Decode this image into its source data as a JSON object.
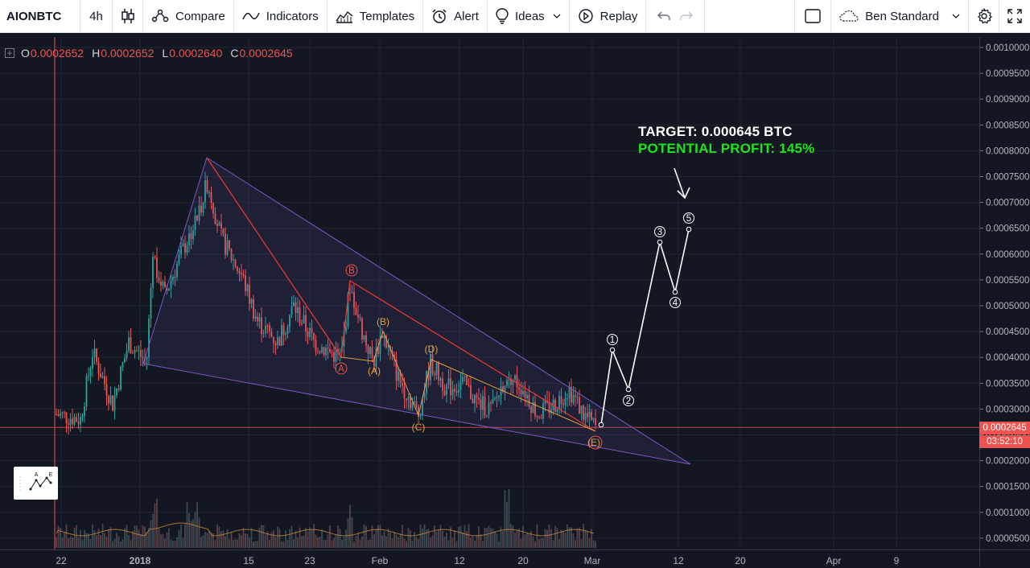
{
  "toolbar": {
    "symbol": "AIONBTC",
    "interval": "4h",
    "compare_label": "Compare",
    "indicators_label": "Indicators",
    "templates_label": "Templates",
    "alert_label": "Alert",
    "ideas_label": "Ideas",
    "replay_label": "Replay",
    "layout_name": "Ben Standard"
  },
  "legend": {
    "o_label": "O",
    "o_value": "0.0002652",
    "h_label": "H",
    "h_value": "0.0002652",
    "l_label": "L",
    "l_value": "0.0002640",
    "c_label": "C",
    "c_value": "0.0002645"
  },
  "annotations": {
    "target": "TARGET: 0.000645 BTC",
    "profit": "POTENTIAL PROFIT: 145%"
  },
  "wave_labels": {
    "red": [
      "A",
      "B",
      "E"
    ],
    "orange": [
      "(A)",
      "(B)",
      "(C)",
      "(D)",
      "(E)"
    ],
    "projection": [
      "1",
      "2",
      "3",
      "4",
      "5"
    ]
  },
  "price_axis": {
    "ticks": [
      "0.0010000",
      "0.0009500",
      "0.0009000",
      "0.0008500",
      "0.0008000",
      "0.0007500",
      "0.0007000",
      "0.0006500",
      "0.0006000",
      "0.0005500",
      "0.0005000",
      "0.0004500",
      "0.0004000",
      "0.0003500",
      "0.0003000",
      "0.0002500",
      "0.0002000",
      "0.0001500",
      "0.0001000",
      "0.0000500"
    ],
    "last_price": "0.0002645",
    "countdown": "03:52:10"
  },
  "time_axis": {
    "ticks": [
      "22",
      "2018",
      "15",
      "23",
      "Feb",
      "12",
      "20",
      "Mar",
      "12",
      "20",
      "Apr",
      "9"
    ]
  },
  "colors": {
    "background": "#131722",
    "up": "#26a69a",
    "down": "#ef5350",
    "triangle": "#7e57c2",
    "target_text": "#ffffff",
    "profit_text": "#1ee41e"
  }
}
